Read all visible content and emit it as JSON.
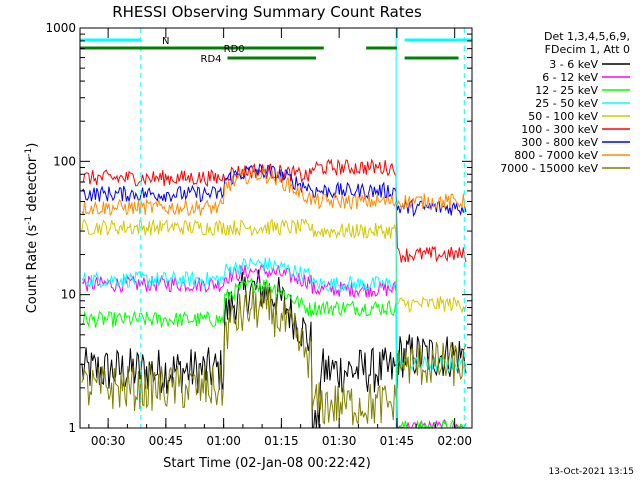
{
  "chart_data": {
    "type": "line",
    "title": "RHESSI Observing Summary Count Rates",
    "xlabel": "Start Time (02-Jan-08 00:22:42)",
    "ylabel_main": "Count Rate (s",
    "ylabel_sup1": "-1",
    "ylabel_mid": " detector",
    "ylabel_sup2": "-1",
    "ylabel_end": ")",
    "yscale": "log",
    "ylim": [
      1,
      1000
    ],
    "xlim_min": [
      22.7,
      124.5
    ],
    "x_tick_min": [
      30,
      45,
      60,
      75,
      90,
      105,
      120
    ],
    "x_tick_labels": [
      "00:30",
      "00:45",
      "01:00",
      "01:15",
      "01:30",
      "01:45",
      "02:00"
    ],
    "y_tick_values": [
      1,
      10,
      100,
      1000
    ],
    "y_tick_labels": [
      "1",
      "10",
      "100",
      "1000"
    ],
    "legend_header": [
      "Det 1,3,4,5,6,9,",
      "FDecim 1, Att 0"
    ],
    "series": [
      {
        "name": "3 - 6 keV",
        "color": "#000000"
      },
      {
        "name": "6 - 12 keV",
        "color": "#ff00ff"
      },
      {
        "name": "12 - 25 keV",
        "color": "#00ff00"
      },
      {
        "name": "25 - 50 keV",
        "color": "#00ffff"
      },
      {
        "name": "50 - 100 keV",
        "color": "#d4c800"
      },
      {
        "name": "100 - 300 keV",
        "color": "#ff0000"
      },
      {
        "name": "300 - 800 keV",
        "color": "#0000ff"
      },
      {
        "name": "800 - 7000 keV",
        "color": "#ff8c00"
      },
      {
        "name": "7000 - 15000 keV",
        "color": "#808000"
      }
    ],
    "series_profiles": [
      {
        "base": 2.7,
        "peak": 11,
        "dipped": 1,
        "post": 3.5
      },
      {
        "base": 12,
        "peak": 15,
        "dipped": 11,
        "post": 1
      },
      {
        "base": 6.5,
        "peak": 12,
        "dipped": 8,
        "post": 1
      },
      {
        "base": 13,
        "peak": 17,
        "dipped": 12,
        "post": 3
      },
      {
        "base": 32,
        "peak": 26,
        "dipped": 30,
        "post": 8.5
      },
      {
        "base": 75,
        "peak": 85,
        "dipped": 90,
        "post": 20
      },
      {
        "base": 57,
        "peak": 85,
        "dipped": 60,
        "post": 45
      },
      {
        "base": 45,
        "peak": 80,
        "dipped": 50,
        "post": 50
      },
      {
        "base": 2.0,
        "peak": 8,
        "dipped": 1.5,
        "post": 3
      }
    ],
    "obs_bars": [
      {
        "label": "N",
        "color": "#00ffff",
        "segments": [
          [
            22.7,
            38.5
          ],
          [
            107,
            124.5
          ]
        ]
      },
      {
        "label": "RD0",
        "color": "#008000",
        "segments": [
          [
            22.7,
            86
          ],
          [
            97,
            105
          ]
        ]
      },
      {
        "label": "RD4",
        "color": "#008000",
        "segments": [
          [
            61,
            84
          ],
          [
            107,
            121
          ]
        ]
      }
    ],
    "vlines_min": [
      38.5,
      104.8,
      122.5
    ],
    "timestamp": "13-Oct-2021 13:15"
  }
}
